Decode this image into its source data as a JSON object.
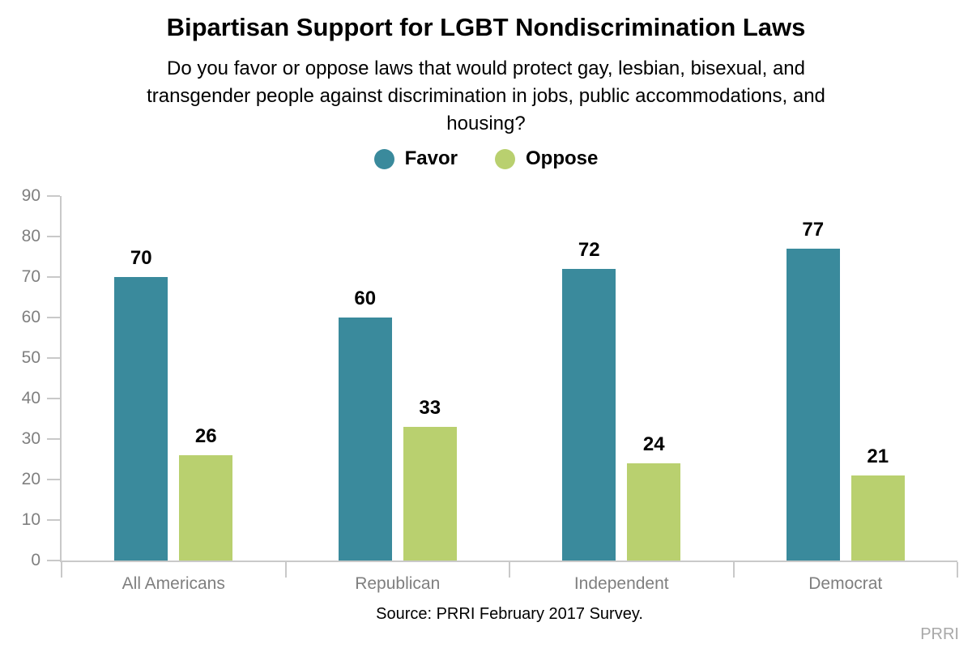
{
  "chart_data": {
    "type": "bar",
    "title": "Bipartisan Support for LGBT Nondiscrimination Laws",
    "subtitle": "Do you favor or oppose laws that would protect gay, lesbian, bisexual, and\ntransgender people against discrimination in jobs, public accommodations, and\nhousing?",
    "categories": [
      "All Americans",
      "Republican",
      "Independent",
      "Democrat"
    ],
    "series": [
      {
        "name": "Favor",
        "color": "#3a8a9c",
        "values": [
          70,
          60,
          72,
          77
        ]
      },
      {
        "name": "Oppose",
        "color": "#b9d06f",
        "values": [
          26,
          33,
          24,
          21
        ]
      }
    ],
    "ylim": [
      0,
      90
    ],
    "ytick_interval": 10,
    "yticks": [
      0,
      10,
      20,
      30,
      40,
      50,
      60,
      70,
      80,
      90
    ],
    "grid": false,
    "value_labels": true,
    "legend_position": "top-center",
    "xlabel": "",
    "ylabel": "",
    "source_note": "Source: PRRI February 2017 Survey.",
    "watermark": "PRRI"
  },
  "colors": {
    "favor": "#3a8a9c",
    "oppose": "#b9d06f",
    "axis": "#c9c9c9",
    "tick_label": "#7f7f7f",
    "watermark": "#a8a8a8"
  }
}
